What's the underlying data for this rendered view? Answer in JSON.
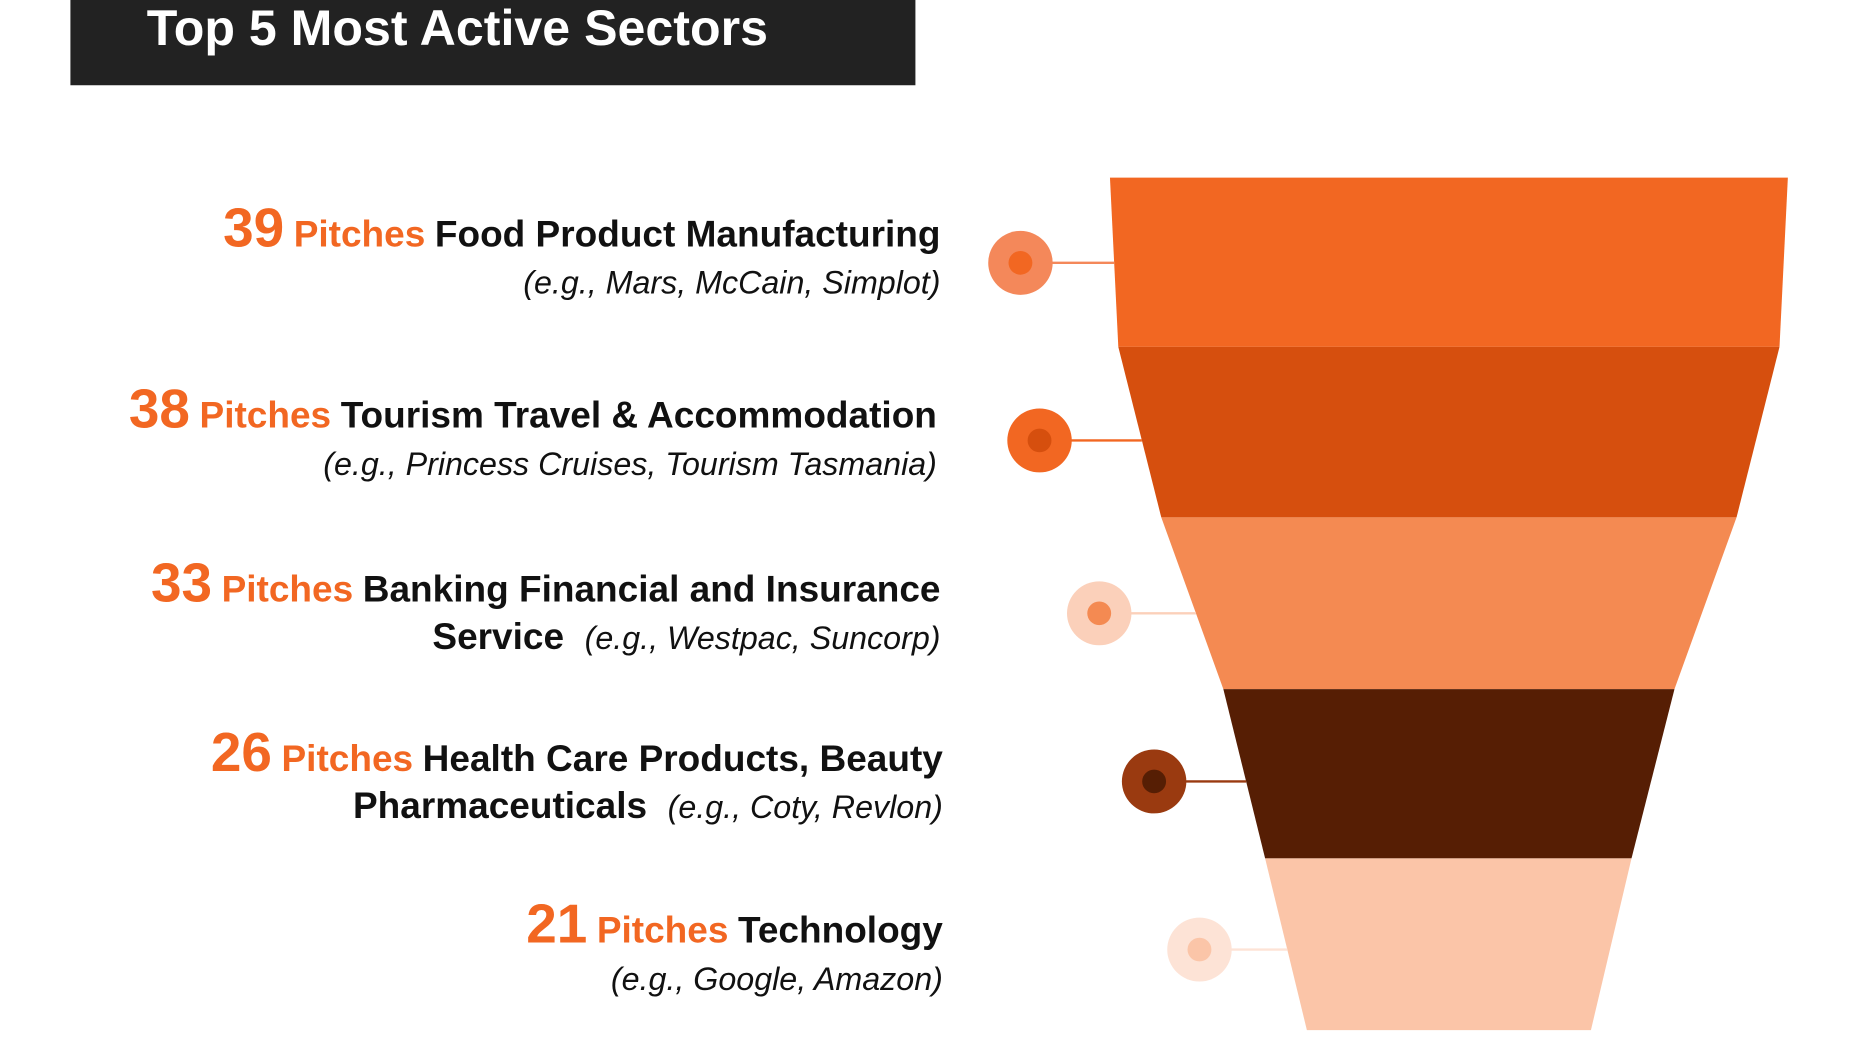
{
  "chart_data": {
    "type": "funnel",
    "title": "Top 5 Most Active Sectors",
    "unit_label": "Pitches",
    "series": [
      {
        "value": 39,
        "sector": "Food Product Manufacturing",
        "examples": "(e.g., Mars, McCain, Simplot)",
        "color": "#F26722",
        "dot": "#F4885A"
      },
      {
        "value": 38,
        "sector": "Tourism Travel & Accommodation",
        "examples": "(e.g., Princess Cruises, Tourism Tasmania)",
        "color": "#D64F0E",
        "dot": "#F26722"
      },
      {
        "value": 33,
        "sector": "Banking Financial and Insurance",
        "sector_cont": "Service",
        "examples": "(e.g., Westpac, Suncorp)",
        "color": "#F48A52",
        "dot": "#FBD0BA"
      },
      {
        "value": 26,
        "sector": "Health Care Products, Beauty",
        "sector_cont": "Pharmaceuticals",
        "examples": "(e.g., Coty, Revlon)",
        "color": "#561E04",
        "dot": "#9A3A10"
      },
      {
        "value": 21,
        "sector": "Technology",
        "examples": "(e.g., Google, Amazon)",
        "color": "#FBC5A8",
        "dot": "#FDE3D6"
      }
    ]
  }
}
